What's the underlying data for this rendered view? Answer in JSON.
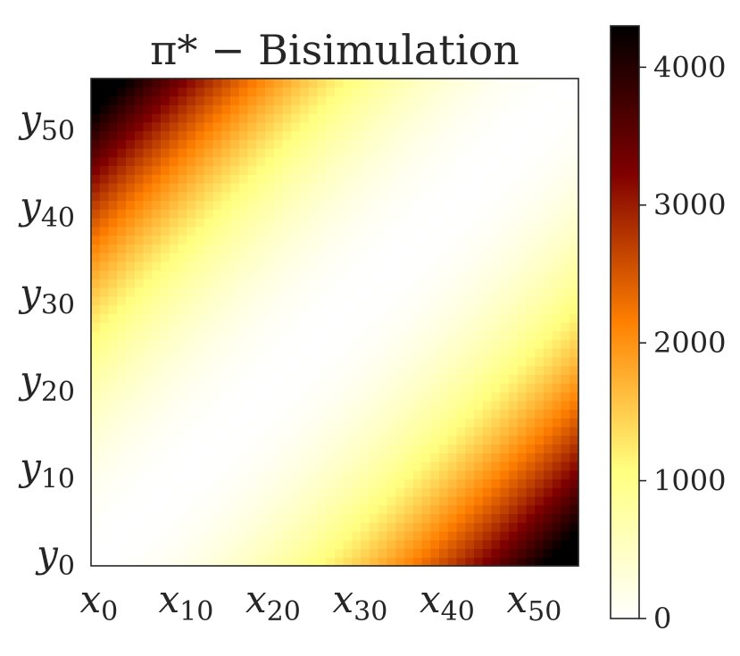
{
  "chart_data": {
    "type": "heatmap",
    "title": "π* − Bisimulation",
    "n": 56,
    "x_tick_labels": [
      {
        "base": "x",
        "sub": "0",
        "index": 0
      },
      {
        "base": "x",
        "sub": "10",
        "index": 10
      },
      {
        "base": "x",
        "sub": "20",
        "index": 20
      },
      {
        "base": "x",
        "sub": "30",
        "index": 30
      },
      {
        "base": "x",
        "sub": "40",
        "index": 40
      },
      {
        "base": "x",
        "sub": "50",
        "index": 50
      }
    ],
    "y_tick_labels": [
      {
        "base": "y",
        "sub": "0",
        "index": 0
      },
      {
        "base": "y",
        "sub": "10",
        "index": 10
      },
      {
        "base": "y",
        "sub": "20",
        "index": 20
      },
      {
        "base": "y",
        "sub": "30",
        "index": 30
      },
      {
        "base": "y",
        "sub": "40",
        "index": 40
      },
      {
        "base": "y",
        "sub": "50",
        "index": 50
      }
    ],
    "value_model": "value(i,j) ≈ 1.6 * (i - j)^2 where i = x index, j = y index",
    "value_range": [
      0,
      4300
    ],
    "colormap": "afmhot_r",
    "colorbar": {
      "ticks": [
        0,
        1000,
        2000,
        3000,
        4000
      ],
      "tick_labels": [
        "0",
        "1000",
        "2000",
        "3000",
        "4000"
      ]
    },
    "colors": {
      "colormap_stops": [
        "#ffffff",
        "#ffff80",
        "#ff8000",
        "#800000",
        "#000000"
      ]
    }
  }
}
